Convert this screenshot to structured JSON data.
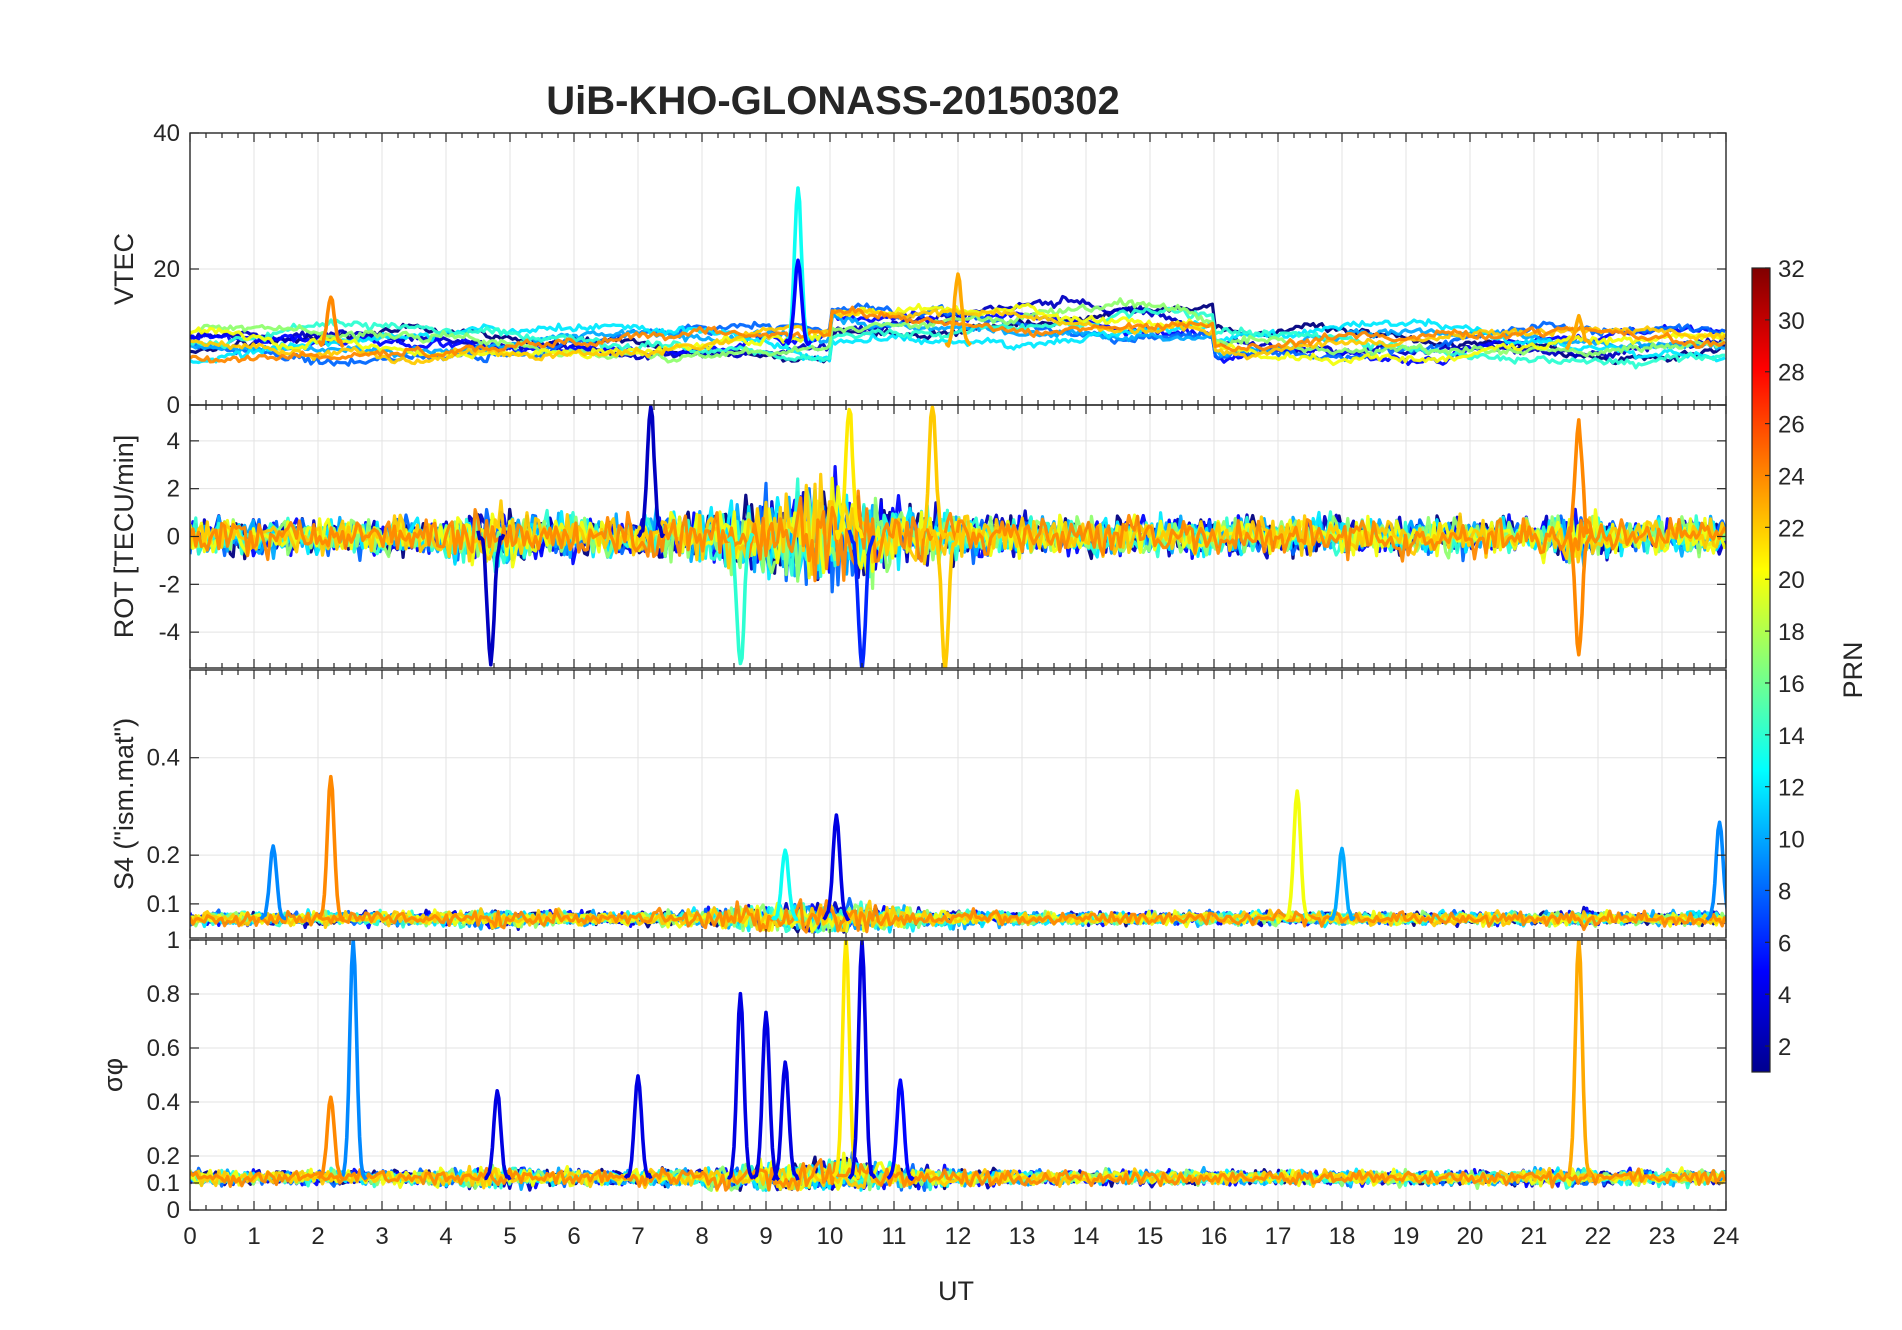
{
  "chart_data": {
    "type": "line",
    "title": "UiB-KHO-GLONASS-20150302",
    "xlabel": "UT",
    "xlim": [
      0,
      24
    ],
    "xticks": [
      0,
      1,
      2,
      3,
      4,
      5,
      6,
      7,
      8,
      9,
      10,
      11,
      12,
      13,
      14,
      15,
      16,
      17,
      18,
      19,
      20,
      21,
      22,
      23,
      24
    ],
    "grid": true,
    "colormap": "jet",
    "colorbar": {
      "label": "PRN",
      "range": [
        1,
        32
      ],
      "ticks": [
        2,
        4,
        6,
        8,
        10,
        12,
        14,
        16,
        18,
        20,
        22,
        24,
        26,
        28,
        30,
        32
      ],
      "placement": "right"
    },
    "panels": [
      {
        "id": "vtec",
        "ylabel": "VTEC",
        "ylim": [
          0,
          40
        ],
        "yticks": [
          0,
          20,
          40
        ],
        "baseline": 9,
        "noise": 2.5,
        "events": [
          {
            "x": 9.5,
            "y": 32,
            "prn": 13,
            "label": "peak"
          },
          {
            "x": 9.5,
            "y": 21,
            "prn": 5
          },
          {
            "x": 12.0,
            "y": 19,
            "prn": 23
          },
          {
            "x": 2.2,
            "y": 16,
            "prn": 24
          },
          {
            "x": 21.7,
            "y": 13,
            "prn": 23
          }
        ]
      },
      {
        "id": "rot",
        "ylabel": "ROT [TECU/min]",
        "ylim": [
          -5.5,
          5.5
        ],
        "yticks": [
          -4,
          -2,
          0,
          2,
          4
        ],
        "baseline": 0,
        "noise": 1.2,
        "events": [
          {
            "x": 10.3,
            "y": 5.5,
            "prn": 21
          },
          {
            "x": 10.5,
            "y": -5.5,
            "prn": 6
          },
          {
            "x": 11.6,
            "y": 5.5,
            "prn": 22
          },
          {
            "x": 11.8,
            "y": -5.5,
            "prn": 22
          },
          {
            "x": 8.6,
            "y": -5.5,
            "prn": 14
          },
          {
            "x": 7.2,
            "y": 5.5,
            "prn": 3
          },
          {
            "x": 21.7,
            "y": 4.8,
            "prn": 24
          },
          {
            "x": 21.7,
            "y": -4.8,
            "prn": 24
          },
          {
            "x": 4.7,
            "y": -5.3,
            "prn": 3
          }
        ]
      },
      {
        "id": "s4",
        "ylabel": "S4 (\"ism.mat\")",
        "ylim": [
          0.03,
          0.58
        ],
        "yticks": [
          0.1,
          0.2,
          0.4
        ],
        "baseline": 0.07,
        "noise": 0.02,
        "events": [
          {
            "x": 2.2,
            "y": 0.36,
            "prn": 24
          },
          {
            "x": 17.3,
            "y": 0.33,
            "prn": 20
          },
          {
            "x": 10.1,
            "y": 0.28,
            "prn": 4
          },
          {
            "x": 1.3,
            "y": 0.22,
            "prn": 9
          },
          {
            "x": 18.0,
            "y": 0.21,
            "prn": 10
          },
          {
            "x": 23.9,
            "y": 0.27,
            "prn": 9
          },
          {
            "x": 9.3,
            "y": 0.21,
            "prn": 13
          }
        ]
      },
      {
        "id": "sigphi",
        "ylabel": "σφ",
        "ylim": [
          0,
          1
        ],
        "yticks": [
          0,
          0.1,
          0.2,
          0.4,
          0.6,
          0.8,
          1
        ],
        "baseline": 0.12,
        "noise": 0.04,
        "events": [
          {
            "x": 2.55,
            "y": 1.0,
            "prn": 9
          },
          {
            "x": 10.25,
            "y": 1.0,
            "prn": 21
          },
          {
            "x": 10.5,
            "y": 1.0,
            "prn": 4
          },
          {
            "x": 21.7,
            "y": 1.0,
            "prn": 23
          },
          {
            "x": 8.6,
            "y": 0.8,
            "prn": 4
          },
          {
            "x": 9.0,
            "y": 0.74,
            "prn": 4
          },
          {
            "x": 9.3,
            "y": 0.55,
            "prn": 4
          },
          {
            "x": 11.1,
            "y": 0.48,
            "prn": 5
          },
          {
            "x": 7.0,
            "y": 0.5,
            "prn": 4
          },
          {
            "x": 2.2,
            "y": 0.42,
            "prn": 24
          },
          {
            "x": 4.8,
            "y": 0.44,
            "prn": 4
          }
        ]
      }
    ],
    "series": [
      {
        "name": "1",
        "prn": 1
      },
      {
        "name": "3",
        "prn": 3
      },
      {
        "name": "5",
        "prn": 5
      },
      {
        "name": "8",
        "prn": 8
      },
      {
        "name": "10",
        "prn": 10
      },
      {
        "name": "12",
        "prn": 12
      },
      {
        "name": "14",
        "prn": 14
      },
      {
        "name": "17",
        "prn": 17
      },
      {
        "name": "20",
        "prn": 20
      },
      {
        "name": "22",
        "prn": 22
      },
      {
        "name": "24",
        "prn": 24
      }
    ]
  }
}
